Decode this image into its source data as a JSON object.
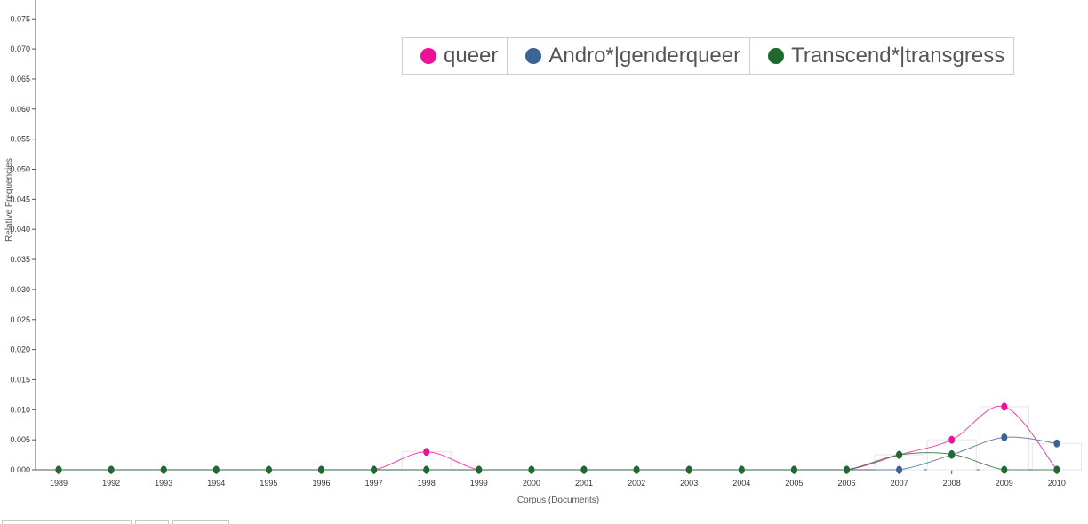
{
  "chart_data": {
    "type": "line",
    "xlabel": "Corpus (Documents)",
    "ylabel": "Relative Frequencies",
    "categories": [
      "1989",
      "1992",
      "1993",
      "1994",
      "1995",
      "1996",
      "1997",
      "1998",
      "1999",
      "2000",
      "2001",
      "2002",
      "2003",
      "2004",
      "2005",
      "2006",
      "2007",
      "2008",
      "2009",
      "2010"
    ],
    "yticks": [
      "0.000",
      "0.005",
      "0.010",
      "0.015",
      "0.020",
      "0.025",
      "0.030",
      "0.035",
      "0.040",
      "0.045",
      "0.050",
      "0.055",
      "0.060",
      "0.065",
      "0.070",
      "0.075"
    ],
    "ylim": [
      0,
      0.077
    ],
    "series": [
      {
        "name": "queer",
        "color": "#ee1198",
        "values": [
          0,
          0,
          0,
          0,
          0,
          0,
          0,
          0.003,
          0,
          0,
          0,
          0,
          0,
          0,
          0,
          0,
          0.0025,
          0.005,
          0.0105,
          0
        ]
      },
      {
        "name": "Andro*|genderqueer",
        "color": "#3b6496",
        "values": [
          0,
          0,
          0,
          0,
          0,
          0,
          0,
          0,
          0,
          0,
          0,
          0,
          0,
          0,
          0,
          0,
          0,
          0.0025,
          0.0054,
          0.0044
        ]
      },
      {
        "name": "Transcend*|transgress",
        "color": "#1e6b30",
        "values": [
          0,
          0,
          0,
          0,
          0,
          0,
          0,
          0,
          0,
          0,
          0,
          0,
          0,
          0,
          0,
          0,
          0.0025,
          0.0026,
          0,
          0
        ]
      }
    ],
    "legend_position": "top-right",
    "grid": false
  },
  "legend": {
    "items": [
      {
        "label": "queer",
        "color": "#ee1198"
      },
      {
        "label": "Andro*|genderqueer",
        "color": "#3b6496"
      },
      {
        "label": "Transcend*|transgress",
        "color": "#1e6b30"
      }
    ]
  },
  "axis_color": "#555555"
}
